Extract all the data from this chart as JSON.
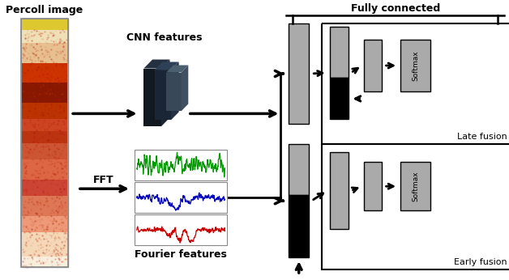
{
  "bg_color": "#ffffff",
  "percoll_label": "Percoll image",
  "cnn_label": "CNN features",
  "fourier_label": "Fourier features",
  "fft_label": "FFT",
  "fully_connected_label": "Fully connected",
  "late_fusion_label": "Late fusion",
  "early_fusion_label": "Early fusion",
  "softmax_label": "Softmax",
  "gray_color": "#aaaaaa",
  "black": "#000000",
  "green_color": "#009900",
  "blue_color": "#0000bb",
  "red_color": "#cc0000"
}
